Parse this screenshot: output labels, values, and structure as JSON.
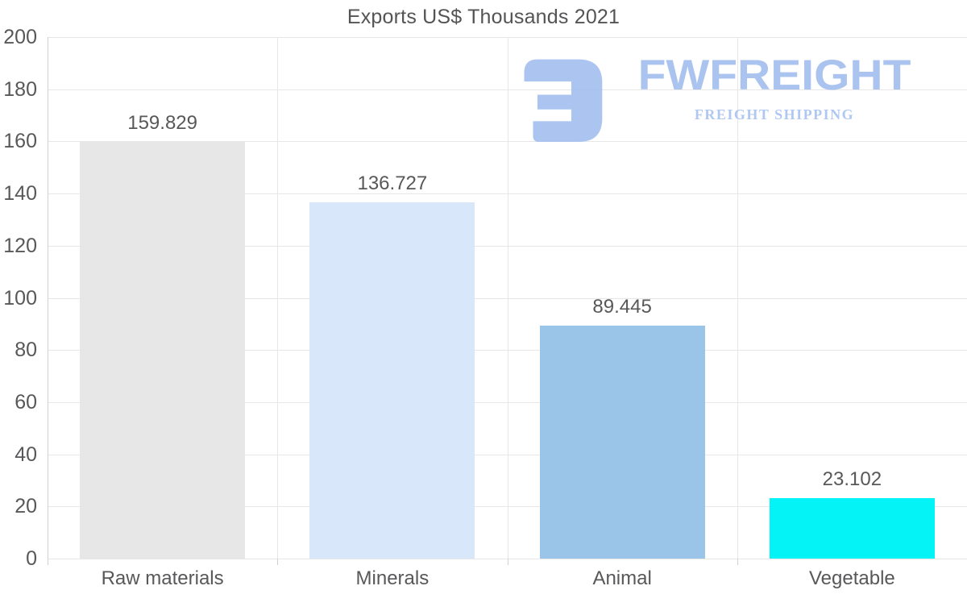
{
  "chart_data": {
    "type": "bar",
    "title": "Exports US$ Thousands 2021",
    "categories": [
      "Raw materials",
      "Minerals",
      "Animal",
      "Vegetable"
    ],
    "values": [
      159.829,
      136.727,
      89.445,
      23.102
    ],
    "value_labels": [
      "159.829",
      "136.727",
      "89.445",
      "23.102"
    ],
    "bar_colors": [
      "#e7e7e8",
      "#d8e7f9",
      "#9ac4e8",
      "#04f3f6"
    ],
    "xlabel": "",
    "ylabel": "",
    "ylim": [
      0,
      200
    ],
    "ytick_step": 20,
    "grid": "on",
    "legend": "none"
  },
  "watermark": {
    "brand": "FWFREIGHT",
    "tagline": "FREIGHT SHIPPING",
    "logo_color": "#a5c1ef",
    "brand_color": "#a3bfee",
    "tagline_color": "#aac3f1"
  },
  "colors": {
    "background": "#ffffff",
    "text": "#58585a",
    "gridline": "#e7e7e7",
    "axis_line": "#cfd1d3"
  }
}
